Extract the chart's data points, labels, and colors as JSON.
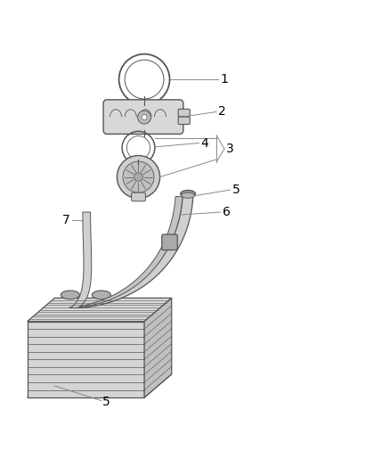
{
  "bg_color": "#ffffff",
  "line_color": "#555555",
  "part_color": "#c8c8c8",
  "label_color": "#000000",
  "fig_width": 4.38,
  "fig_height": 5.33,
  "dpi": 100,
  "font_size": 10
}
